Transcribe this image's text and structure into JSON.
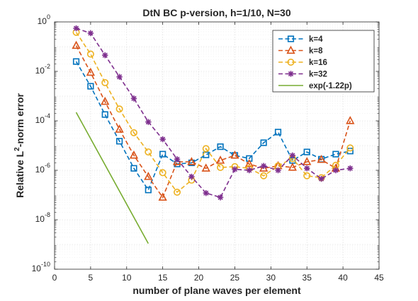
{
  "chart_data": {
    "type": "line",
    "title": "DtN BC p-version, h=1/10, N=30",
    "xlabel": "number of plane waves per element",
    "ylabel": "Relative L2-norm error",
    "ylabel_parts": [
      "Relative L",
      "2",
      "-norm error"
    ],
    "xlim": [
      0,
      45
    ],
    "ylim": [
      1e-10,
      1
    ],
    "yscale": "log",
    "grid": true,
    "legend_position": "top-right",
    "x_ticks": [
      0,
      5,
      10,
      15,
      20,
      25,
      30,
      35,
      40,
      45
    ],
    "x_tick_labels": [
      "0",
      "5",
      "10",
      "15",
      "20",
      "25",
      "30",
      "35",
      "40",
      "45"
    ],
    "y_ticks": [
      1e-10,
      1e-08,
      1e-06,
      0.0001,
      0.01,
      1
    ],
    "y_tick_labels": [
      {
        "base": "10",
        "exp": "-10"
      },
      {
        "base": "10",
        "exp": "-8"
      },
      {
        "base": "10",
        "exp": "-6"
      },
      {
        "base": "10",
        "exp": "-4"
      },
      {
        "base": "10",
        "exp": "-2"
      },
      {
        "base": "10",
        "exp": "0"
      }
    ],
    "series": [
      {
        "name": "k=4",
        "color": "#0072BD",
        "marker": "square",
        "dash": true,
        "x": [
          3,
          5,
          7,
          9,
          11,
          13,
          15,
          17,
          19,
          21,
          23,
          25,
          27,
          29,
          31,
          33,
          35,
          37,
          39,
          41
        ],
        "y": [
          0.025,
          0.0025,
          0.00018,
          1.5e-05,
          1.2e-06,
          1.6e-07,
          4.5e-06,
          1.8e-06,
          2e-06,
          4.2e-06,
          9e-06,
          4e-06,
          3e-06,
          1.3e-05,
          3.5e-05,
          2.5e-06,
          5.5e-06,
          2.8e-06,
          4.5e-06,
          6e-06
        ]
      },
      {
        "name": "k=8",
        "color": "#D95319",
        "marker": "triangle",
        "dash": true,
        "x": [
          3,
          5,
          7,
          9,
          11,
          13,
          15,
          17,
          19,
          21,
          23,
          25,
          27,
          29,
          31,
          33,
          35,
          37,
          39,
          41
        ],
        "y": [
          0.11,
          0.009,
          0.0006,
          4.5e-05,
          4e-06,
          5.5e-07,
          8e-08,
          2.2e-06,
          2.2e-06,
          1.2e-06,
          2.5e-06,
          4e-06,
          1.8e-06,
          1.2e-06,
          1.5e-06,
          1.3e-06,
          2.2e-06,
          2.7e-06,
          1.2e-06,
          0.0001
        ]
      },
      {
        "name": "k=16",
        "color": "#EDB120",
        "marker": "circle",
        "dash": true,
        "x": [
          3,
          5,
          7,
          9,
          11,
          13,
          15,
          17,
          19,
          21,
          23,
          25,
          27,
          29,
          31,
          33,
          35,
          37,
          39,
          41
        ],
        "y": [
          0.38,
          0.05,
          0.0035,
          0.0003,
          3.3e-05,
          5.5e-06,
          8e-07,
          1.3e-07,
          4e-07,
          7.5e-06,
          1.3e-06,
          1.4e-06,
          1.2e-06,
          6e-07,
          1.5e-06,
          3e-06,
          6e-07,
          5e-07,
          1.6e-06,
          8e-06
        ]
      },
      {
        "name": "k=32",
        "color": "#7E2F8E",
        "marker": "asterisk",
        "dash": true,
        "x": [
          3,
          5,
          7,
          9,
          11,
          13,
          15,
          17,
          19,
          21,
          23,
          25,
          27,
          29,
          31,
          33,
          35,
          37,
          39,
          41
        ],
        "y": [
          0.55,
          0.35,
          0.045,
          0.006,
          0.0008,
          9e-05,
          1.8e-05,
          2.8e-06,
          5.5e-07,
          1.2e-07,
          8e-08,
          1.1e-06,
          1e-06,
          1.5e-06,
          1e-06,
          4e-06,
          1.2e-06,
          4.5e-07,
          1e-06,
          1.2e-06
        ]
      },
      {
        "name": "exp(-1.22p)",
        "color": "#77AC30",
        "marker": "none",
        "dash": false,
        "x": [
          3,
          13
        ],
        "y": [
          0.00022,
          1.1e-09
        ]
      }
    ]
  }
}
